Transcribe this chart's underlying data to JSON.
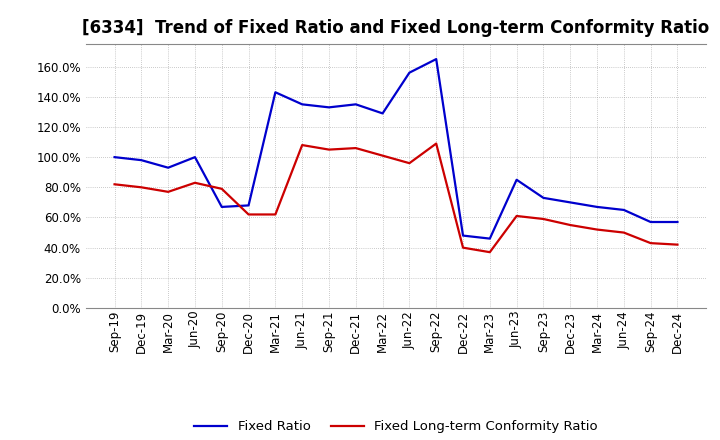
{
  "title": "[6334]  Trend of Fixed Ratio and Fixed Long-term Conformity Ratio",
  "x_labels": [
    "Sep-19",
    "Dec-19",
    "Mar-20",
    "Jun-20",
    "Sep-20",
    "Dec-20",
    "Mar-21",
    "Jun-21",
    "Sep-21",
    "Dec-21",
    "Mar-22",
    "Jun-22",
    "Sep-22",
    "Dec-22",
    "Mar-23",
    "Jun-23",
    "Sep-23",
    "Dec-23",
    "Mar-24",
    "Jun-24",
    "Sep-24",
    "Dec-24"
  ],
  "fixed_ratio": [
    100.0,
    98.0,
    93.0,
    100.0,
    67.0,
    68.0,
    143.0,
    135.0,
    133.0,
    135.0,
    129.0,
    156.0,
    165.0,
    48.0,
    46.0,
    85.0,
    73.0,
    70.0,
    67.0,
    65.0,
    57.0,
    57.0
  ],
  "fixed_lt_ratio": [
    82.0,
    80.0,
    77.0,
    83.0,
    79.0,
    62.0,
    62.0,
    108.0,
    105.0,
    106.0,
    101.0,
    96.0,
    109.0,
    40.0,
    37.0,
    61.0,
    59.0,
    55.0,
    52.0,
    50.0,
    43.0,
    42.0
  ],
  "ylim": [
    0.0,
    175.0
  ],
  "yticks": [
    0.0,
    20.0,
    40.0,
    60.0,
    80.0,
    100.0,
    120.0,
    140.0,
    160.0
  ],
  "fixed_ratio_color": "#0000CD",
  "fixed_lt_ratio_color": "#CC0000",
  "background_color": "#FFFFFF",
  "grid_color": "#999999",
  "title_fontsize": 12,
  "legend_fontsize": 9.5,
  "tick_fontsize": 8.5,
  "linewidth": 1.6
}
